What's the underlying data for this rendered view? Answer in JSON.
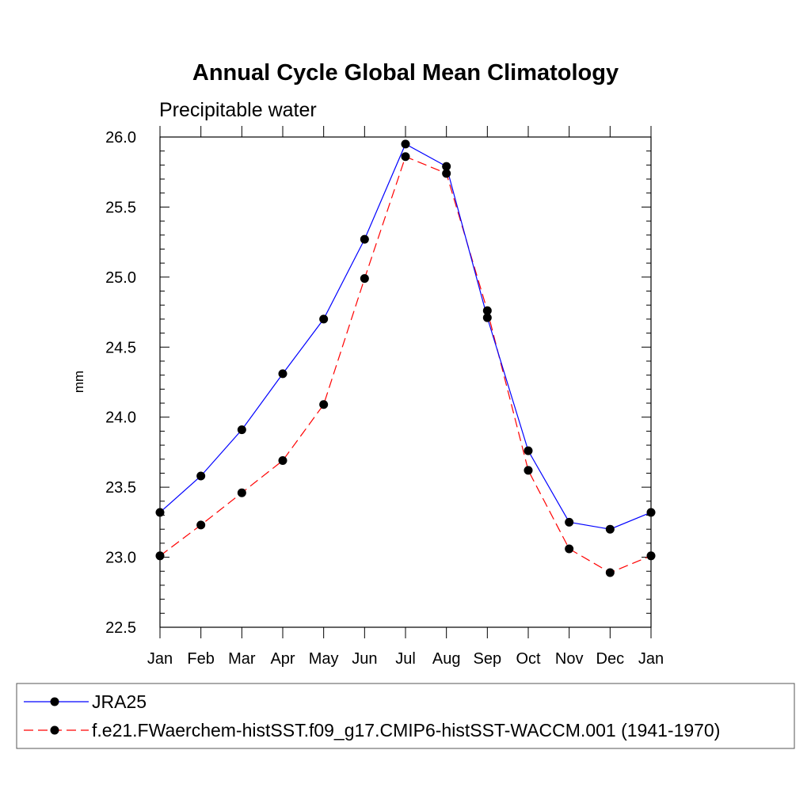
{
  "chart_data": {
    "type": "line",
    "title": "Annual Cycle Global Mean Climatology",
    "subtitle": "Precipitable water",
    "xlabel": "",
    "ylabel": "mm",
    "ylim": [
      22.5,
      26.0
    ],
    "yticks": [
      "22.5",
      "23.0",
      "23.5",
      "24.0",
      "24.5",
      "25.0",
      "25.5",
      "26.0"
    ],
    "categories": [
      "Jan",
      "Feb",
      "Mar",
      "Apr",
      "May",
      "Jun",
      "Jul",
      "Aug",
      "Sep",
      "Oct",
      "Nov",
      "Dec",
      "Jan"
    ],
    "grid": false,
    "legend_position": "bottom",
    "series": [
      {
        "name": "JRA25",
        "color": "#0000ff",
        "line_style": "solid",
        "marker": "filled-circle",
        "values": [
          23.32,
          23.58,
          23.91,
          24.31,
          24.7,
          25.27,
          25.95,
          25.79,
          24.71,
          23.76,
          23.25,
          23.2,
          23.32
        ]
      },
      {
        "name": "f.e21.FWaerchem-histSST.f09_g17.CMIP6-histSST-WACCM.001 (1941-1970)",
        "color": "#ff0000",
        "line_style": "dashed",
        "marker": "filled-circle",
        "values": [
          23.01,
          23.23,
          23.46,
          23.69,
          24.09,
          24.99,
          25.86,
          25.74,
          24.76,
          23.62,
          23.06,
          22.89,
          23.01
        ]
      }
    ]
  }
}
